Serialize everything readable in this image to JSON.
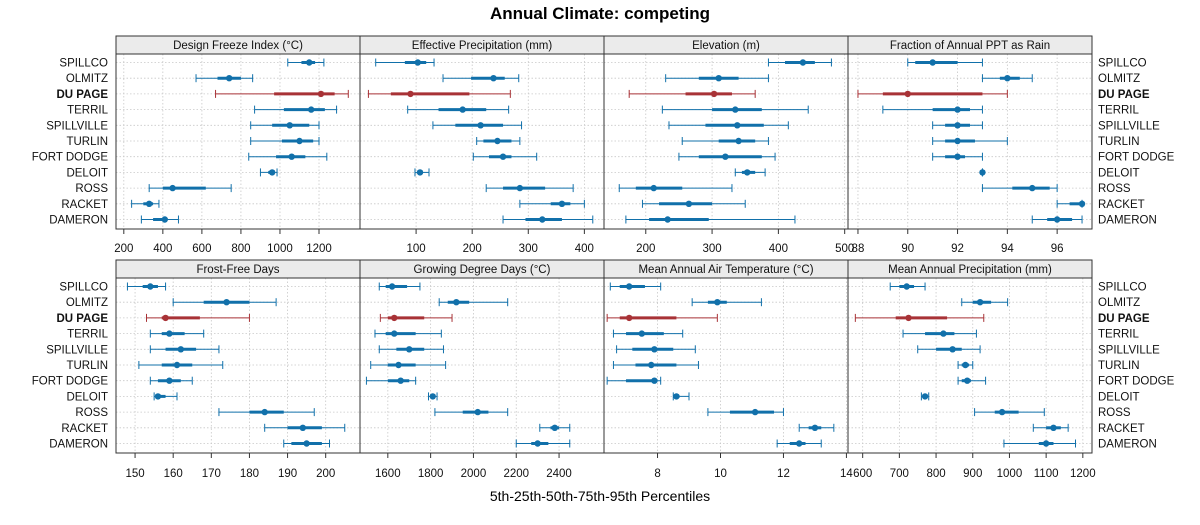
{
  "chart_data": {
    "type": "percentile-dot-plot",
    "title": "Annual Climate: competing",
    "xlabel": "5th-25th-50th-75th-95th Percentiles",
    "highlight_site": "DU PAGE",
    "highlight_color": "#a83236",
    "base_color": "#1170aa",
    "sites": [
      "SPILLCO",
      "OLMITZ",
      "DU PAGE",
      "TERRIL",
      "SPILLVILLE",
      "TURLIN",
      "FORT DODGE",
      "DELOIT",
      "ROSS",
      "RACKET",
      "DAMERON"
    ],
    "panels": [
      {
        "name": "Design Freeze Index (°C)",
        "xlim": [
          160,
          1410
        ],
        "ticks": [
          200,
          400,
          600,
          800,
          1000,
          1200
        ],
        "tick_labels": [
          "200",
          "400",
          "600",
          "800",
          "1000",
          "1200"
        ],
        "series": [
          [
            1040,
            1110,
            1150,
            1180,
            1225
          ],
          [
            570,
            680,
            740,
            800,
            860
          ],
          [
            670,
            970,
            1210,
            1280,
            1350
          ],
          [
            870,
            1020,
            1160,
            1230,
            1290
          ],
          [
            850,
            960,
            1050,
            1150,
            1200
          ],
          [
            850,
            1010,
            1100,
            1170,
            1200
          ],
          [
            840,
            980,
            1060,
            1130,
            1240
          ],
          [
            900,
            940,
            960,
            970,
            985
          ],
          [
            330,
            400,
            450,
            620,
            750
          ],
          [
            240,
            300,
            330,
            350,
            380
          ],
          [
            290,
            350,
            410,
            420,
            480
          ]
        ]
      },
      {
        "name": "Effective Precipitation (mm)",
        "xlim": [
          0,
          435
        ],
        "ticks": [
          100,
          200,
          300,
          400
        ],
        "tick_labels": [
          "100",
          "200",
          "300",
          "400"
        ],
        "series": [
          [
            28,
            80,
            103,
            118,
            132
          ],
          [
            148,
            198,
            238,
            258,
            283
          ],
          [
            15,
            55,
            90,
            195,
            268
          ],
          [
            85,
            140,
            183,
            225,
            265
          ],
          [
            130,
            170,
            215,
            255,
            288
          ],
          [
            208,
            220,
            245,
            270,
            285
          ],
          [
            202,
            230,
            255,
            270,
            315
          ],
          [
            98,
            102,
            107,
            112,
            123
          ],
          [
            225,
            255,
            285,
            330,
            380
          ],
          [
            285,
            340,
            360,
            375,
            400
          ],
          [
            255,
            295,
            325,
            360,
            415
          ]
        ]
      },
      {
        "name": "Elevation (m)",
        "xlim": [
          137,
          505
        ],
        "ticks": [
          200,
          300,
          400,
          500
        ],
        "tick_labels": [
          "200",
          "300",
          "400",
          "500"
        ],
        "series": [
          [
            385,
            410,
            437,
            455,
            480
          ],
          [
            230,
            280,
            310,
            340,
            385
          ],
          [
            175,
            260,
            303,
            330,
            365
          ],
          [
            225,
            300,
            335,
            375,
            445
          ],
          [
            235,
            290,
            338,
            378,
            415
          ],
          [
            255,
            310,
            340,
            365,
            385
          ],
          [
            250,
            280,
            320,
            375,
            395
          ],
          [
            335,
            345,
            353,
            365,
            380
          ],
          [
            160,
            185,
            212,
            255,
            330
          ],
          [
            195,
            220,
            265,
            300,
            350
          ],
          [
            170,
            205,
            233,
            295,
            425
          ]
        ]
      },
      {
        "name": "Fraction of Annual PPT as Rain",
        "xlim": [
          87.6,
          97.4
        ],
        "ticks": [
          88,
          90,
          92,
          94,
          96
        ],
        "tick_labels": [
          "88",
          "90",
          "92",
          "94",
          "96"
        ],
        "series": [
          [
            90,
            90.3,
            91,
            92,
            93
          ],
          [
            93,
            93.7,
            94,
            94.5,
            95
          ],
          [
            88,
            89,
            90,
            93,
            94
          ],
          [
            89,
            91,
            92,
            92.5,
            93
          ],
          [
            91,
            91.5,
            92,
            92.5,
            93
          ],
          [
            91,
            91.5,
            92,
            92.7,
            94
          ],
          [
            91,
            91.5,
            92,
            92.3,
            93
          ],
          [
            93,
            93,
            93,
            93,
            93
          ],
          [
            93,
            94.2,
            95,
            95.7,
            96
          ],
          [
            96,
            96.5,
            97,
            97,
            97
          ],
          [
            95,
            95.6,
            96,
            96.6,
            97
          ]
        ]
      },
      {
        "name": "Frost-Free Days",
        "xlim": [
          145,
          209
        ],
        "ticks": [
          150,
          160,
          170,
          180,
          190,
          200
        ],
        "tick_labels": [
          "150",
          "160",
          "170",
          "180",
          "190",
          "200"
        ],
        "series": [
          [
            148,
            152,
            154,
            156,
            158
          ],
          [
            160,
            168,
            174,
            180,
            187
          ],
          [
            153,
            157,
            158,
            167,
            180
          ],
          [
            154,
            157,
            159,
            163,
            168
          ],
          [
            154,
            158,
            162,
            166,
            172
          ],
          [
            151,
            157,
            161,
            165,
            173
          ],
          [
            154,
            156,
            159,
            162,
            165
          ],
          [
            155,
            156,
            156,
            158,
            161
          ],
          [
            172,
            180,
            184,
            189,
            197
          ],
          [
            184,
            190,
            194,
            199,
            205
          ],
          [
            189,
            191,
            195,
            199,
            201
          ]
        ]
      },
      {
        "name": "Growing Degree Days (°C)",
        "xlim": [
          1470,
          2610
        ],
        "ticks": [
          1600,
          1800,
          2000,
          2200,
          2400
        ],
        "tick_labels": [
          "1600",
          "1800",
          "2000",
          "2200",
          "2400"
        ],
        "series": [
          [
            1560,
            1590,
            1620,
            1690,
            1750
          ],
          [
            1840,
            1880,
            1920,
            1980,
            2160
          ],
          [
            1565,
            1600,
            1630,
            1770,
            1900
          ],
          [
            1540,
            1590,
            1630,
            1730,
            1850
          ],
          [
            1560,
            1640,
            1700,
            1770,
            1860
          ],
          [
            1520,
            1600,
            1650,
            1730,
            1870
          ],
          [
            1500,
            1600,
            1660,
            1700,
            1730
          ],
          [
            1790,
            1800,
            1810,
            1820,
            1830
          ],
          [
            1820,
            1950,
            2020,
            2070,
            2160
          ],
          [
            2310,
            2360,
            2380,
            2400,
            2450
          ],
          [
            2200,
            2270,
            2300,
            2350,
            2450
          ]
        ]
      },
      {
        "name": "Mean Annual Air Temperature (°C)",
        "xlim": [
          6.3,
          14.05
        ],
        "ticks": [
          8,
          10,
          12,
          14
        ],
        "tick_labels": [
          "8",
          "10",
          "12",
          "14"
        ],
        "series": [
          [
            6.5,
            6.8,
            7.1,
            7.6,
            8.1
          ],
          [
            9.1,
            9.6,
            9.9,
            10.2,
            11.3
          ],
          [
            6.4,
            6.8,
            7.1,
            8.6,
            9.9
          ],
          [
            6.6,
            7.0,
            7.5,
            8.2,
            8.8
          ],
          [
            6.7,
            7.2,
            7.9,
            8.5,
            9.2
          ],
          [
            6.6,
            7.3,
            7.8,
            8.6,
            9.3
          ],
          [
            6.4,
            7.0,
            7.9,
            8.0,
            8.1
          ],
          [
            8.5,
            8.5,
            8.6,
            8.7,
            9.0
          ],
          [
            9.6,
            10.3,
            11.1,
            11.7,
            12.0
          ],
          [
            12.5,
            12.8,
            13.0,
            13.2,
            13.6
          ],
          [
            11.8,
            12.2,
            12.5,
            12.7,
            13.2
          ]
        ]
      },
      {
        "name": "Mean Annual Precipitation (mm)",
        "xlim": [
          560,
          1225
        ],
        "ticks": [
          600,
          700,
          800,
          900,
          1000,
          1100,
          1200
        ],
        "tick_labels": [
          "600",
          "700",
          "800",
          "900",
          "1000",
          "1100",
          "1200"
        ],
        "series": [
          [
            675,
            700,
            720,
            740,
            770
          ],
          [
            870,
            900,
            920,
            950,
            995
          ],
          [
            580,
            690,
            725,
            830,
            930
          ],
          [
            710,
            770,
            820,
            850,
            910
          ],
          [
            750,
            800,
            845,
            870,
            920
          ],
          [
            860,
            870,
            880,
            890,
            900
          ],
          [
            860,
            870,
            885,
            895,
            935
          ],
          [
            760,
            765,
            770,
            775,
            780
          ],
          [
            905,
            960,
            980,
            1025,
            1095
          ],
          [
            1065,
            1100,
            1120,
            1140,
            1160
          ],
          [
            985,
            1080,
            1100,
            1120,
            1180
          ]
        ]
      }
    ]
  }
}
